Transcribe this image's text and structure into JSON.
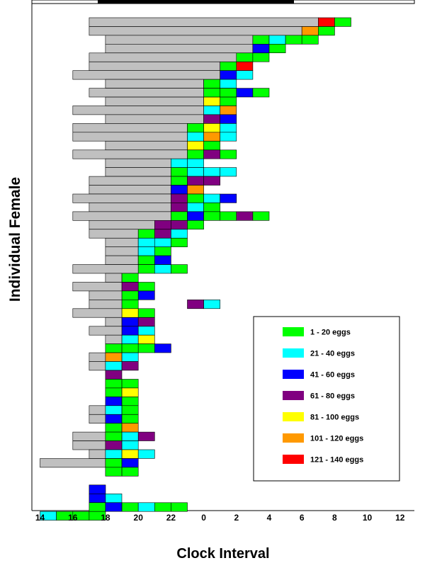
{
  "chart_data": {
    "type": "bar",
    "subtype": "stacked-horizontal-timeline",
    "title": "",
    "xlabel": "Clock Interval",
    "ylabel": "Individual Female",
    "x_tick_labels": [
      "14",
      "16",
      "18",
      "20",
      "22",
      "0",
      "2",
      "4",
      "6",
      "8",
      "10",
      "12"
    ],
    "xlim": [
      13.5,
      37.5
    ],
    "grid": false,
    "legend_position": "lower-right",
    "categories": [
      {
        "label": "1 - 20 eggs",
        "color": "#00ff00"
      },
      {
        "label": "21 - 40 eggs",
        "color": "#00ffff"
      },
      {
        "label": "41 - 60 eggs",
        "color": "#0000ff"
      },
      {
        "label": "61 - 80 eggs",
        "color": "#800080"
      },
      {
        "label": "81 - 100 eggs",
        "color": "#ffff00"
      },
      {
        "label": "101 - 120 eggs",
        "color": "#ff9900"
      },
      {
        "label": "121 - 140 eggs",
        "color": "#ff0000"
      }
    ],
    "pre_oviposition_color": "#c0c0c0",
    "females": [
      {
        "gray_start": 17,
        "oviposition_start": 31,
        "cells": [
          7,
          1
        ]
      },
      {
        "gray_start": 17,
        "oviposition_start": 30,
        "cells": [
          6,
          1
        ]
      },
      {
        "gray_start": 18,
        "oviposition_start": 27,
        "cells": [
          1,
          2,
          1,
          1
        ]
      },
      {
        "gray_start": 18,
        "oviposition_start": 27,
        "cells": [
          3,
          1
        ]
      },
      {
        "gray_start": 17,
        "oviposition_start": 26,
        "cells": [
          1,
          1
        ]
      },
      {
        "gray_start": 17,
        "oviposition_start": 25,
        "cells": [
          1,
          7
        ]
      },
      {
        "gray_start": 16,
        "oviposition_start": 25,
        "cells": [
          3,
          2
        ]
      },
      {
        "gray_start": 18,
        "oviposition_start": 24,
        "cells": [
          1,
          2
        ]
      },
      {
        "gray_start": 17,
        "oviposition_start": 24,
        "cells": [
          1,
          1,
          3,
          1
        ]
      },
      {
        "gray_start": 18,
        "oviposition_start": 24,
        "cells": [
          5,
          1
        ]
      },
      {
        "gray_start": 16,
        "oviposition_start": 24,
        "cells": [
          2,
          6
        ]
      },
      {
        "gray_start": 18,
        "oviposition_start": 24,
        "cells": [
          4,
          3
        ]
      },
      {
        "gray_start": 16,
        "oviposition_start": 23,
        "cells": [
          1,
          5,
          2
        ]
      },
      {
        "gray_start": 16,
        "oviposition_start": 23,
        "cells": [
          2,
          6,
          2
        ]
      },
      {
        "gray_start": 18,
        "oviposition_start": 23,
        "cells": [
          5,
          1
        ]
      },
      {
        "gray_start": 16,
        "oviposition_start": 23,
        "cells": [
          1,
          4,
          1
        ]
      },
      {
        "gray_start": 18,
        "oviposition_start": 22,
        "cells": [
          2,
          2
        ]
      },
      {
        "gray_start": 18,
        "oviposition_start": 22,
        "cells": [
          1,
          2,
          2,
          2
        ]
      },
      {
        "gray_start": 17,
        "oviposition_start": 22,
        "cells": [
          1,
          4,
          4
        ]
      },
      {
        "gray_start": 17,
        "oviposition_start": 22,
        "cells": [
          3,
          6
        ]
      },
      {
        "gray_start": 16,
        "oviposition_start": 22,
        "cells": [
          4,
          1,
          2,
          3
        ]
      },
      {
        "gray_start": 17,
        "oviposition_start": 22,
        "cells": [
          4,
          2,
          1
        ]
      },
      {
        "gray_start": 16,
        "oviposition_start": 22,
        "cells": [
          1,
          3,
          1,
          1,
          4,
          1
        ]
      },
      {
        "gray_start": 17,
        "oviposition_start": 21,
        "cells": [
          4,
          4,
          1
        ]
      },
      {
        "gray_start": 17,
        "oviposition_start": 20,
        "cells": [
          1,
          4,
          2
        ]
      },
      {
        "gray_start": 18,
        "oviposition_start": 20,
        "cells": [
          2,
          2,
          1
        ]
      },
      {
        "gray_start": 18,
        "oviposition_start": 20,
        "cells": [
          2,
          1
        ]
      },
      {
        "gray_start": 18,
        "oviposition_start": 20,
        "cells": [
          1,
          3
        ]
      },
      {
        "gray_start": 16,
        "oviposition_start": 20,
        "cells": [
          1,
          2,
          1
        ]
      },
      {
        "gray_start": 18,
        "oviposition_start": 19,
        "cells": [
          1
        ]
      },
      {
        "gray_start": 16,
        "oviposition_start": 19,
        "cells": [
          4,
          1
        ]
      },
      {
        "gray_start": 17,
        "oviposition_start": 19,
        "cells": [
          1,
          3
        ]
      },
      {
        "gray_start": 17,
        "oviposition_start": 19,
        "cells": [
          1
        ],
        "extra_cells": [
          {
            "start": 23,
            "cells": [
              4,
              2
            ]
          }
        ]
      },
      {
        "gray_start": 16,
        "oviposition_start": 19,
        "cells": [
          5,
          1
        ]
      },
      {
        "gray_start": 18,
        "oviposition_start": 19,
        "cells": [
          3,
          4
        ]
      },
      {
        "gray_start": 17,
        "oviposition_start": 19,
        "cells": [
          3,
          2
        ]
      },
      {
        "gray_start": 18,
        "oviposition_start": 19,
        "cells": [
          2,
          5
        ]
      },
      {
        "gray_start": 18,
        "oviposition_start": 18,
        "cells": [
          1,
          1,
          1,
          3
        ]
      },
      {
        "gray_start": 17,
        "oviposition_start": 18,
        "cells": [
          6,
          2
        ]
      },
      {
        "gray_start": 17,
        "oviposition_start": 18,
        "cells": [
          2,
          4
        ]
      },
      {
        "gray_start": 18,
        "oviposition_start": 18,
        "cells": [
          4
        ]
      },
      {
        "gray_start": 18,
        "oviposition_start": 18,
        "cells": [
          1,
          1
        ]
      },
      {
        "gray_start": 18,
        "oviposition_start": 18,
        "cells": [
          1,
          5
        ]
      },
      {
        "gray_start": 18,
        "oviposition_start": 18,
        "cells": [
          3,
          1
        ]
      },
      {
        "gray_start": 17,
        "oviposition_start": 18,
        "cells": [
          2,
          1
        ]
      },
      {
        "gray_start": 17,
        "oviposition_start": 18,
        "cells": [
          3,
          1
        ]
      },
      {
        "gray_start": 18,
        "oviposition_start": 18,
        "cells": [
          1,
          6
        ]
      },
      {
        "gray_start": 16,
        "oviposition_start": 18,
        "cells": [
          1,
          2,
          4
        ]
      },
      {
        "gray_start": 16,
        "oviposition_start": 18,
        "cells": [
          4,
          2
        ]
      },
      {
        "gray_start": 17,
        "oviposition_start": 18,
        "cells": [
          2,
          5,
          2
        ]
      },
      {
        "gray_start": 14,
        "oviposition_start": 18,
        "cells": [
          1,
          3
        ]
      },
      {
        "gray_start": 18,
        "oviposition_start": 18,
        "cells": [
          1,
          1
        ]
      },
      {
        "gray_start": null,
        "oviposition_start": null,
        "cells": []
      },
      {
        "gray_start": null,
        "oviposition_start": 17,
        "cells": [
          3
        ]
      },
      {
        "gray_start": null,
        "oviposition_start": 17,
        "cells": [
          3,
          2
        ]
      },
      {
        "gray_start": null,
        "oviposition_start": 17,
        "cells": [
          1,
          3,
          1,
          2,
          1,
          1
        ]
      },
      {
        "gray_start": null,
        "oviposition_start": 14,
        "cells": [
          2,
          1,
          1,
          1
        ]
      }
    ]
  }
}
